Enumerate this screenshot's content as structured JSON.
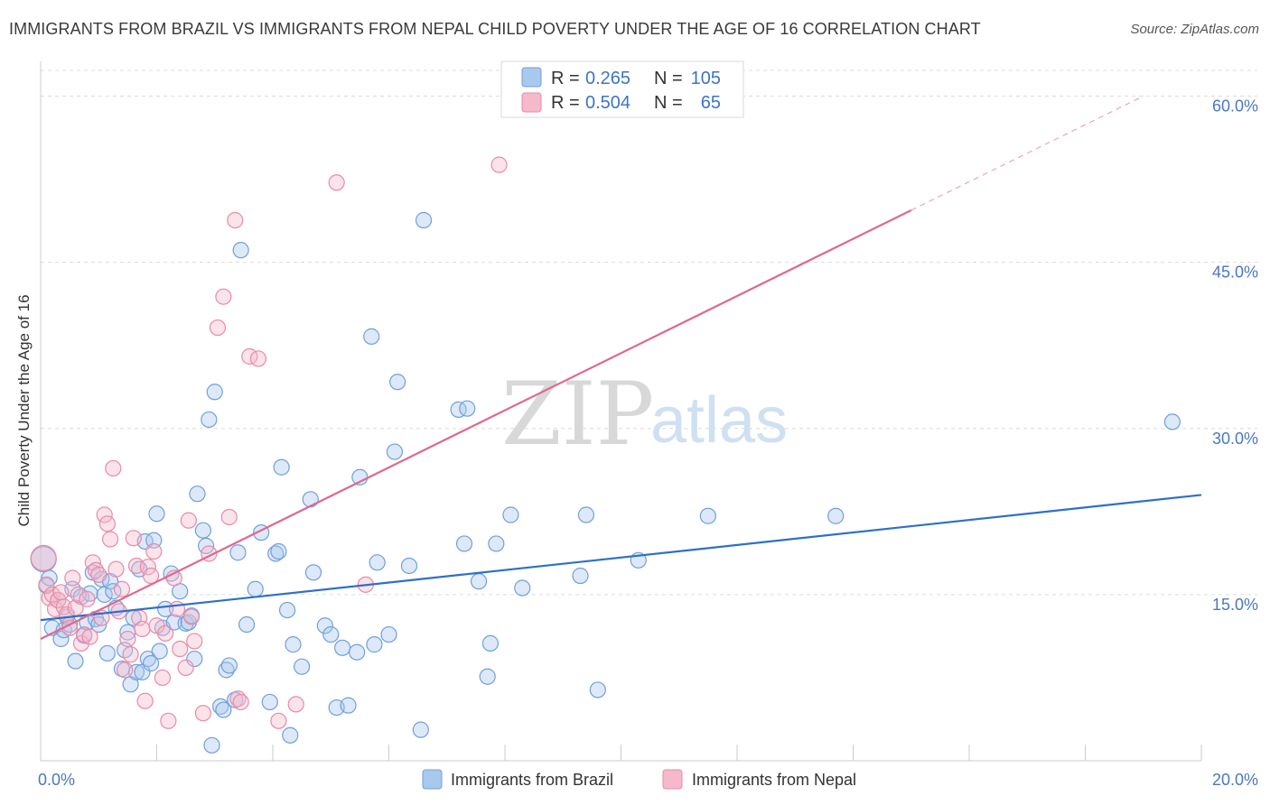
{
  "title": "IMMIGRANTS FROM BRAZIL VS IMMIGRANTS FROM NEPAL CHILD POVERTY UNDER THE AGE OF 16 CORRELATION CHART",
  "source": "Source: ZipAtlas.com",
  "watermark": {
    "zip": "ZIP",
    "atlas": "atlas"
  },
  "legend": {
    "r_label": "R =",
    "n_label": "N =",
    "rows": [
      {
        "r": "0.265",
        "n": "105",
        "color": "#a9c8ee"
      },
      {
        "r": "0.504",
        "n": "65",
        "color": "#f6b8cb"
      }
    ]
  },
  "colors": {
    "brazil_fill": "#a9c8ee",
    "brazil_stroke": "#6f9fdc",
    "brazil_line": "#2e6fcc",
    "nepal_fill": "#f6b8cb",
    "nepal_stroke": "#e98aa8",
    "nepal_line": "#e0688f",
    "grid": "#dcdcdc",
    "tick_label": "#4a78c2"
  },
  "chart_data": {
    "type": "scatter",
    "ylabel": "Child Poverty Under the Age of 16",
    "xlim": [
      0,
      20
    ],
    "ylim": [
      0,
      62
    ],
    "x_tick_labels": [
      {
        "value": 0,
        "label": "0.0%"
      },
      {
        "value": 20,
        "label": "20.0%"
      }
    ],
    "y_tick_labels": [
      {
        "value": 15,
        "label": "15.0%"
      },
      {
        "value": 30,
        "label": "30.0%"
      },
      {
        "value": 45,
        "label": "45.0%"
      },
      {
        "value": 60,
        "label": "60.0%"
      }
    ],
    "x_minor_ticks": [
      0,
      2,
      4,
      6,
      8,
      10,
      12,
      14,
      16,
      18,
      20
    ],
    "grid": true,
    "legend_position": "top-center",
    "series": [
      {
        "name": "Immigrants from Brazil",
        "trend": {
          "x": [
            0,
            20
          ],
          "y": [
            12.7,
            24.0
          ],
          "dashed_extension": false
        },
        "points": [
          [
            0.05,
            18.2
          ],
          [
            0.1,
            15.8
          ],
          [
            0.15,
            16.5
          ],
          [
            0.2,
            12.0
          ],
          [
            0.3,
            14.5
          ],
          [
            0.35,
            11.0
          ],
          [
            0.4,
            11.8
          ],
          [
            0.45,
            13.0
          ],
          [
            0.5,
            12.3
          ],
          [
            0.55,
            15.5
          ],
          [
            0.6,
            9.0
          ],
          [
            0.7,
            14.8
          ],
          [
            0.75,
            11.3
          ],
          [
            0.8,
            12.5
          ],
          [
            0.85,
            15.1
          ],
          [
            0.9,
            17.0
          ],
          [
            0.95,
            12.8
          ],
          [
            1.0,
            12.3
          ],
          [
            1.05,
            16.4
          ],
          [
            1.1,
            15.0
          ],
          [
            1.15,
            9.7
          ],
          [
            1.2,
            16.2
          ],
          [
            1.25,
            15.3
          ],
          [
            1.3,
            13.8
          ],
          [
            1.4,
            8.3
          ],
          [
            1.45,
            10.0
          ],
          [
            1.5,
            11.6
          ],
          [
            1.55,
            6.9
          ],
          [
            1.6,
            12.9
          ],
          [
            1.65,
            8.0
          ],
          [
            1.7,
            17.3
          ],
          [
            1.75,
            8.0
          ],
          [
            1.8,
            19.8
          ],
          [
            1.85,
            9.2
          ],
          [
            1.9,
            8.8
          ],
          [
            1.95,
            19.9
          ],
          [
            2.0,
            22.3
          ],
          [
            2.05,
            9.9
          ],
          [
            2.1,
            12.0
          ],
          [
            2.15,
            13.7
          ],
          [
            2.25,
            16.9
          ],
          [
            2.3,
            12.5
          ],
          [
            2.4,
            15.3
          ],
          [
            2.5,
            12.4
          ],
          [
            2.55,
            12.5
          ],
          [
            2.6,
            13.1
          ],
          [
            2.65,
            9.2
          ],
          [
            2.7,
            24.1
          ],
          [
            2.8,
            20.8
          ],
          [
            2.85,
            19.4
          ],
          [
            2.9,
            30.8
          ],
          [
            2.95,
            1.4
          ],
          [
            3.0,
            33.3
          ],
          [
            3.1,
            4.9
          ],
          [
            3.15,
            4.6
          ],
          [
            3.2,
            8.2
          ],
          [
            3.25,
            8.6
          ],
          [
            3.35,
            5.5
          ],
          [
            3.4,
            18.8
          ],
          [
            3.45,
            46.1
          ],
          [
            3.55,
            12.3
          ],
          [
            3.7,
            15.5
          ],
          [
            3.8,
            20.6
          ],
          [
            3.95,
            5.3
          ],
          [
            4.05,
            18.7
          ],
          [
            4.1,
            18.9
          ],
          [
            4.15,
            26.5
          ],
          [
            4.25,
            13.6
          ],
          [
            4.3,
            2.3
          ],
          [
            4.35,
            10.5
          ],
          [
            4.5,
            8.5
          ],
          [
            4.65,
            23.6
          ],
          [
            4.7,
            17.0
          ],
          [
            4.9,
            12.2
          ],
          [
            5.0,
            11.4
          ],
          [
            5.1,
            4.8
          ],
          [
            5.2,
            10.2
          ],
          [
            5.3,
            5.0
          ],
          [
            5.45,
            9.8
          ],
          [
            5.5,
            25.6
          ],
          [
            5.7,
            38.3
          ],
          [
            5.75,
            10.5
          ],
          [
            5.8,
            17.9
          ],
          [
            6.0,
            11.4
          ],
          [
            6.1,
            27.9
          ],
          [
            6.15,
            34.2
          ],
          [
            6.35,
            17.6
          ],
          [
            6.55,
            2.8
          ],
          [
            6.6,
            48.8
          ],
          [
            7.2,
            31.7
          ],
          [
            7.3,
            19.6
          ],
          [
            7.35,
            31.8
          ],
          [
            7.55,
            16.2
          ],
          [
            7.7,
            7.6
          ],
          [
            7.75,
            10.6
          ],
          [
            7.85,
            19.6
          ],
          [
            8.1,
            22.2
          ],
          [
            8.3,
            15.6
          ],
          [
            9.3,
            16.7
          ],
          [
            9.4,
            22.2
          ],
          [
            9.6,
            6.4
          ],
          [
            10.3,
            18.1
          ],
          [
            11.5,
            22.1
          ],
          [
            13.7,
            22.1
          ],
          [
            19.5,
            30.6
          ]
        ]
      },
      {
        "name": "Immigrants from Nepal",
        "trend": {
          "x": [
            0,
            15
          ],
          "y": [
            11.0,
            49.7
          ],
          "dashed_x": [
            15,
            19.0
          ],
          "dashed_y": [
            49.7,
            60.0
          ]
        },
        "points": [
          [
            0.05,
            18.3
          ],
          [
            0.1,
            15.9
          ],
          [
            0.15,
            14.7
          ],
          [
            0.2,
            15.0
          ],
          [
            0.25,
            13.7
          ],
          [
            0.3,
            14.5
          ],
          [
            0.35,
            15.2
          ],
          [
            0.4,
            13.9
          ],
          [
            0.45,
            13.2
          ],
          [
            0.5,
            12.0
          ],
          [
            0.55,
            16.5
          ],
          [
            0.6,
            13.8
          ],
          [
            0.65,
            15.0
          ],
          [
            0.7,
            10.6
          ],
          [
            0.75,
            11.4
          ],
          [
            0.8,
            14.6
          ],
          [
            0.85,
            11.2
          ],
          [
            0.9,
            17.9
          ],
          [
            0.95,
            17.2
          ],
          [
            1.0,
            16.8
          ],
          [
            1.05,
            12.9
          ],
          [
            1.1,
            22.2
          ],
          [
            1.15,
            21.4
          ],
          [
            1.2,
            20.0
          ],
          [
            1.25,
            26.4
          ],
          [
            1.3,
            17.3
          ],
          [
            1.35,
            13.5
          ],
          [
            1.4,
            15.5
          ],
          [
            1.45,
            8.2
          ],
          [
            1.5,
            11.0
          ],
          [
            1.55,
            9.6
          ],
          [
            1.6,
            20.1
          ],
          [
            1.65,
            17.6
          ],
          [
            1.7,
            12.9
          ],
          [
            1.75,
            11.9
          ],
          [
            1.8,
            5.4
          ],
          [
            1.85,
            17.5
          ],
          [
            1.9,
            16.7
          ],
          [
            1.95,
            18.9
          ],
          [
            2.0,
            12.2
          ],
          [
            2.1,
            7.5
          ],
          [
            2.15,
            11.5
          ],
          [
            2.2,
            3.6
          ],
          [
            2.3,
            16.5
          ],
          [
            2.35,
            13.7
          ],
          [
            2.4,
            10.1
          ],
          [
            2.5,
            8.4
          ],
          [
            2.55,
            21.7
          ],
          [
            2.6,
            13.0
          ],
          [
            2.65,
            10.8
          ],
          [
            2.8,
            4.3
          ],
          [
            2.9,
            18.7
          ],
          [
            3.05,
            39.1
          ],
          [
            3.15,
            41.9
          ],
          [
            3.25,
            22.0
          ],
          [
            3.35,
            48.8
          ],
          [
            3.4,
            5.6
          ],
          [
            3.45,
            5.3
          ],
          [
            3.6,
            36.5
          ],
          [
            3.75,
            36.3
          ],
          [
            4.1,
            3.6
          ],
          [
            4.4,
            5.1
          ],
          [
            5.1,
            52.2
          ],
          [
            5.6,
            15.9
          ],
          [
            7.9,
            53.8
          ]
        ]
      }
    ]
  }
}
